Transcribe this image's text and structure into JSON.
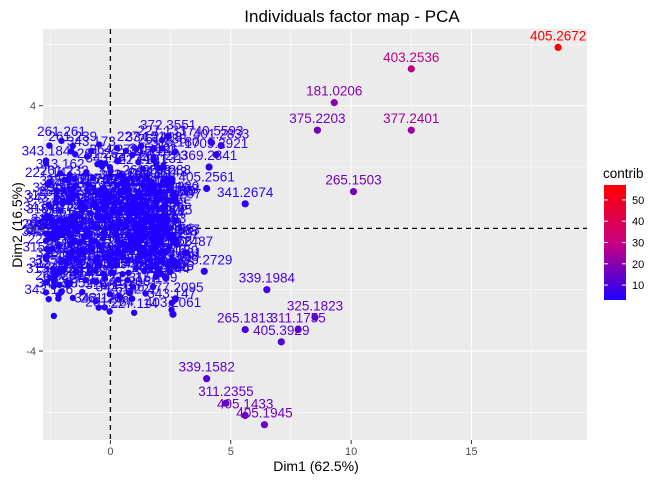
{
  "chart_data": {
    "type": "scatter",
    "title": "Individuals factor map - PCA",
    "xlabel": "Dim1 (62.5%)",
    "ylabel": "Dim2 (16.5%)",
    "xlim": [
      -2.8,
      19.8
    ],
    "ylim": [
      -6.9,
      6.5
    ],
    "x_ticks": [
      0,
      5,
      10,
      15
    ],
    "y_ticks": [
      -4,
      0,
      4
    ],
    "reference_lines": {
      "x": 0,
      "y": 0
    },
    "grid": true,
    "legend": {
      "title": "contrib",
      "placement": "right",
      "ticks": [
        10,
        20,
        30,
        40,
        50
      ],
      "range": [
        3,
        57
      ],
      "low_color": "#1f00ff",
      "high_color": "#ff0000"
    },
    "points": [
      {
        "label": "405.2672",
        "x": 18.6,
        "y": 5.9,
        "contrib": 57
      },
      {
        "label": "403.2536",
        "x": 12.5,
        "y": 5.2,
        "contrib": 28
      },
      {
        "label": "181.0206",
        "x": 9.3,
        "y": 4.1,
        "contrib": 20
      },
      {
        "label": "377.2401",
        "x": 12.5,
        "y": 3.2,
        "contrib": 24
      },
      {
        "label": "375.2203",
        "x": 8.6,
        "y": 3.2,
        "contrib": 17
      },
      {
        "label": "265.1503",
        "x": 10.1,
        "y": 1.2,
        "contrib": 17
      },
      {
        "label": "372.3551",
        "x": 2.4,
        "y": 3.0,
        "contrib": 6
      },
      {
        "label": "1740.5593",
        "x": 4.2,
        "y": 2.8,
        "contrib": 7
      },
      {
        "label": "401.2833",
        "x": 4.6,
        "y": 2.7,
        "contrib": 7
      },
      {
        "label": "334.2418",
        "x": 1.8,
        "y": 2.6,
        "contrib": 5
      },
      {
        "label": "1709.2921",
        "x": 4.4,
        "y": 2.4,
        "contrib": 6
      },
      {
        "label": "364.2791",
        "x": 0.3,
        "y": 2.2,
        "contrib": 5
      },
      {
        "label": "287.223",
        "x": 2.2,
        "y": 2.0,
        "contrib": 5
      },
      {
        "label": "369.2341",
        "x": 4.1,
        "y": 2.0,
        "contrib": 6
      },
      {
        "label": "405.2561",
        "x": 4.0,
        "y": 1.3,
        "contrib": 5
      },
      {
        "label": "341.2674",
        "x": 5.6,
        "y": 0.8,
        "contrib": 6
      },
      {
        "label": "300.5565",
        "x": 2.2,
        "y": 0.4,
        "contrib": 4
      },
      {
        "label": "343.2393",
        "x": 1.8,
        "y": -0.3,
        "contrib": 4
      },
      {
        "label": "259.2487",
        "x": 3.1,
        "y": -0.8,
        "contrib": 4
      },
      {
        "label": "375.2729",
        "x": 3.9,
        "y": -1.4,
        "contrib": 5
      },
      {
        "label": "339.1984",
        "x": 6.5,
        "y": -2.0,
        "contrib": 9
      },
      {
        "label": "355.1926",
        "x": 2.3,
        "y": -1.6,
        "contrib": 4
      },
      {
        "label": "277.2095",
        "x": 2.7,
        "y": -2.3,
        "contrib": 4
      },
      {
        "label": "241.2061",
        "x": 0.8,
        "y": -2.1,
        "contrib": 4
      },
      {
        "label": "403.2061",
        "x": 2.6,
        "y": -2.8,
        "contrib": 5
      },
      {
        "label": "325.1823",
        "x": 8.5,
        "y": -2.9,
        "contrib": 14
      },
      {
        "label": "265.1813",
        "x": 5.6,
        "y": -3.3,
        "contrib": 10
      },
      {
        "label": "311.1755",
        "x": 7.8,
        "y": -3.3,
        "contrib": 13
      },
      {
        "label": "405.3929",
        "x": 7.1,
        "y": -3.7,
        "contrib": 11
      },
      {
        "label": "339.1582",
        "x": 4.0,
        "y": -4.9,
        "contrib": 12
      },
      {
        "label": "311.2355",
        "x": 4.8,
        "y": -5.7,
        "contrib": 14
      },
      {
        "label": "405.1433",
        "x": 5.6,
        "y": -6.1,
        "contrib": 15
      },
      {
        "label": "405.1945",
        "x": 6.4,
        "y": -6.4,
        "contrib": 16
      }
    ]
  }
}
